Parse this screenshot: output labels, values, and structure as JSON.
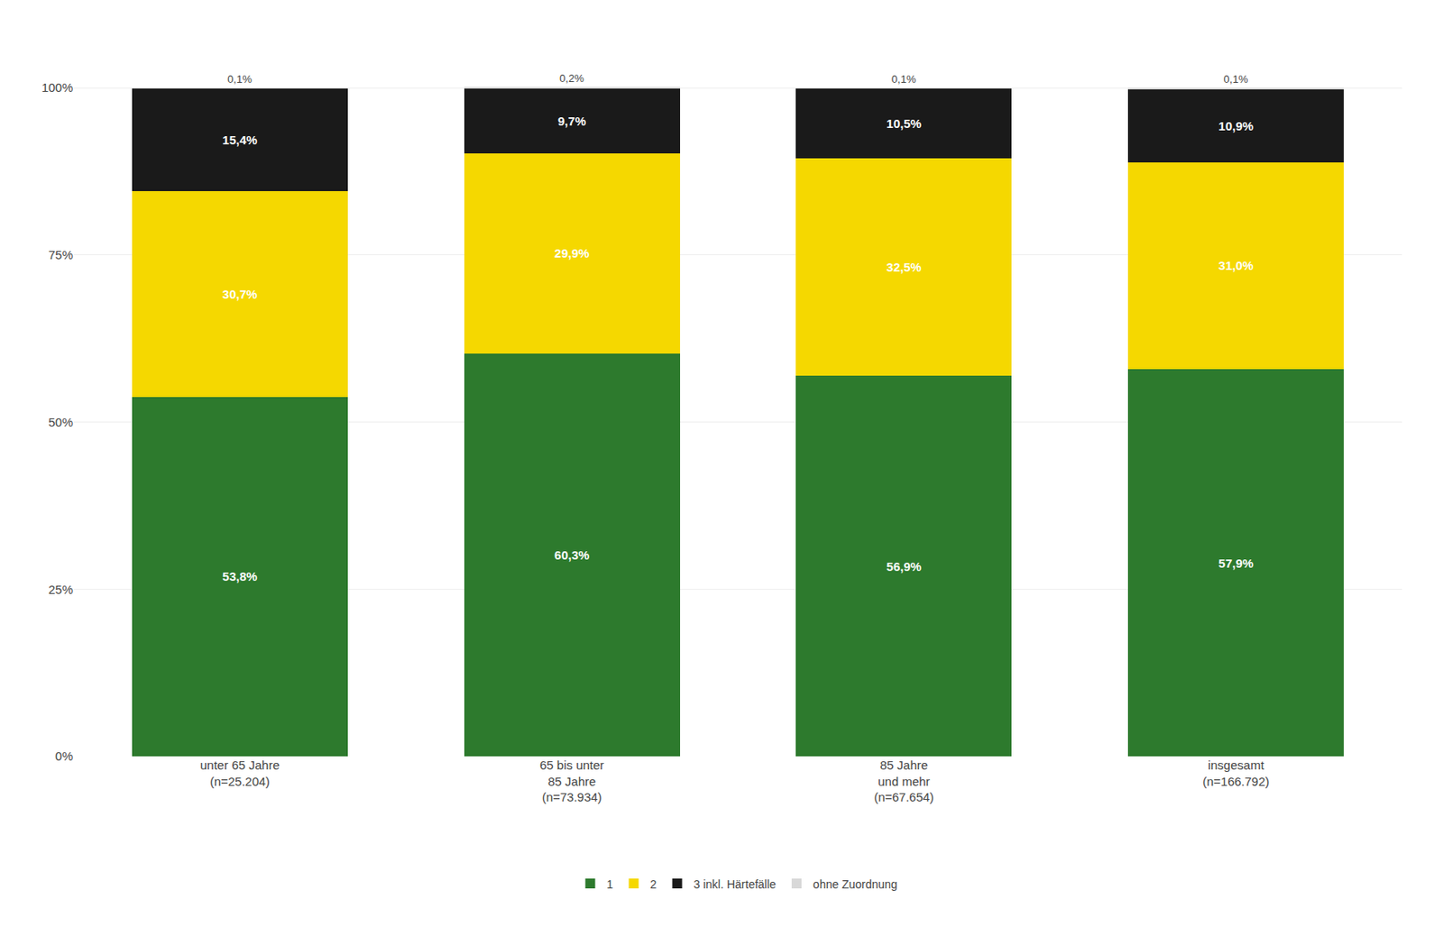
{
  "chart_data": {
    "type": "bar",
    "stacked": true,
    "categories": [
      "unter 65 Jahre\n(n=25.204)",
      "65 bis unter\n85 Jahre\n(n=73.934)",
      "85 Jahre\nund mehr\n(n=67.654)",
      "insgesamt\n(n=166.792)"
    ],
    "series": [
      {
        "name": "1",
        "color": "#2d7a2d",
        "values": [
          53.8,
          60.3,
          56.9,
          57.9
        ],
        "value_labels": [
          "53,8%",
          "60,3%",
          "56,9%",
          "57,9%"
        ]
      },
      {
        "name": "2",
        "color": "#f5d800",
        "values": [
          30.7,
          29.9,
          32.5,
          31.0
        ],
        "value_labels": [
          "30,7%",
          "29,9%",
          "32,5%",
          "31,0%"
        ]
      },
      {
        "name": "3 inkl. Härtefälle",
        "color": "#1a1a1a",
        "values": [
          15.4,
          9.7,
          10.5,
          10.9
        ],
        "value_labels": [
          "15,4%",
          "9,7%",
          "10,5%",
          "10,9%"
        ]
      },
      {
        "name": "ohne Zuordnung",
        "color": "#d8d8d8",
        "values": [
          0.1,
          0.2,
          0.1,
          0.1
        ],
        "value_labels": [
          "0,1%",
          "0,2%",
          "0,1%",
          "0,1%"
        ]
      }
    ],
    "data_labels": true,
    "ylim": [
      0,
      107
    ],
    "yticks": [
      {
        "value": 0,
        "label": "0%"
      },
      {
        "value": 25,
        "label": "25%"
      },
      {
        "value": 50,
        "label": "50%"
      },
      {
        "value": 75,
        "label": "75%"
      },
      {
        "value": 100,
        "label": "100%"
      }
    ],
    "grid": true,
    "legend": "bottom"
  }
}
